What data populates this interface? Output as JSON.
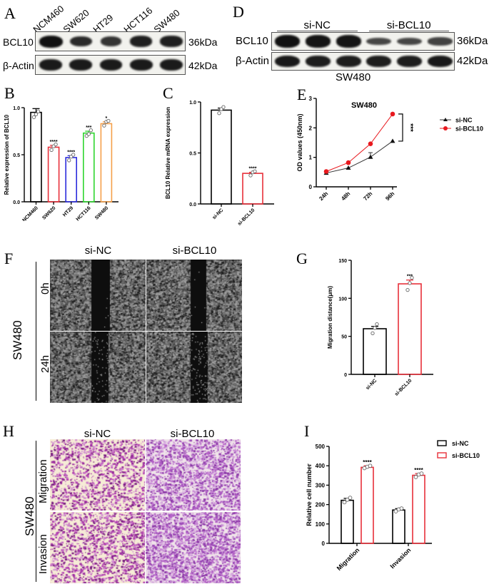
{
  "panels": {
    "A": {
      "label": "A",
      "lanes": [
        "NCM460",
        "SW620",
        "HT29",
        "HCT116",
        "SW480"
      ],
      "rows": [
        {
          "protein": "BCL10",
          "size": "36kDa",
          "intensity": [
            1.0,
            0.75,
            0.65,
            0.85,
            0.85
          ]
        },
        {
          "protein": "β-Actin",
          "size": "42kDa",
          "intensity": [
            0.9,
            0.9,
            0.9,
            0.9,
            0.9
          ]
        }
      ]
    },
    "D": {
      "label": "D",
      "groups": [
        "si-NC",
        "si-BCL10"
      ],
      "cell_line": "SW480",
      "rows": [
        {
          "protein": "BCL10",
          "size": "36kDa",
          "intensity": [
            1.0,
            0.95,
            0.95,
            0.4,
            0.4,
            0.45
          ]
        },
        {
          "protein": "β-Actin",
          "size": "42kDa",
          "intensity": [
            0.9,
            0.85,
            0.85,
            0.85,
            0.85,
            0.9
          ]
        }
      ]
    },
    "F": {
      "label": "F",
      "columns": [
        "si-NC",
        "si-BCL10"
      ],
      "rows": [
        "0h",
        "24h"
      ],
      "cell_line": "SW480"
    },
    "H": {
      "label": "H",
      "columns": [
        "si-NC",
        "si-BCL10"
      ],
      "rows": [
        "Migration",
        "Invasion"
      ],
      "cell_line": "SW480"
    }
  },
  "chart_data": [
    {
      "panel": "B",
      "type": "bar",
      "title": "",
      "xlabel": "",
      "ylabel": "Relative expression of BCL10",
      "categories": [
        "NCM460",
        "SW620",
        "HT29",
        "HCT116",
        "SW480"
      ],
      "values": [
        0.95,
        0.58,
        0.47,
        0.73,
        0.83
      ],
      "errors": [
        0.04,
        0.02,
        0.02,
        0.02,
        0.02
      ],
      "points": [
        [
          0.9,
          0.93,
          0.96
        ],
        [
          0.55,
          0.59,
          0.61
        ],
        [
          0.44,
          0.48,
          0.5
        ],
        [
          0.7,
          0.72,
          0.76
        ],
        [
          0.81,
          0.85,
          0.86
        ]
      ],
      "significance": [
        "",
        "****",
        "****",
        "***",
        "*"
      ],
      "colors": [
        "#000000",
        "#e8303a",
        "#2b2bdc",
        "#2ed62e",
        "#f5a04a"
      ],
      "ylim": [
        0,
        1.0
      ],
      "yticks": [
        "0.0",
        "0.5",
        "1.0"
      ],
      "grid": false
    },
    {
      "panel": "C",
      "type": "bar",
      "title": "",
      "xlabel": "",
      "ylabel": "BCL10 Relative mRNA expression",
      "categories": [
        "si-NC",
        "si-BCL10"
      ],
      "values": [
        0.92,
        0.3
      ],
      "errors": [
        0.02,
        0.01
      ],
      "points": [
        [
          0.89,
          0.93,
          0.95
        ],
        [
          0.28,
          0.31,
          0.32
        ]
      ],
      "significance": [
        "",
        "****"
      ],
      "colors": [
        "#000000",
        "#e8303a"
      ],
      "ylim": [
        0,
        1.0
      ],
      "yticks": [
        "0.0",
        "0.5",
        "1.0"
      ],
      "grid": false
    },
    {
      "panel": "E",
      "type": "line",
      "title": "SW480",
      "xlabel": "",
      "ylabel": "OD values  (450nm)",
      "categories": [
        "24h",
        "48h",
        "72h",
        "96h"
      ],
      "series": [
        {
          "name": "si-NC",
          "values": [
            0.47,
            0.64,
            1.01,
            1.55
          ],
          "errors": [
            0.02,
            0.02,
            0.15,
            0.03
          ],
          "color": "#333333",
          "marker": "triangle"
        },
        {
          "name": "si-BCL10",
          "values": [
            0.52,
            0.82,
            1.46,
            2.47
          ],
          "errors": [
            0.02,
            0.02,
            0.02,
            0.02
          ],
          "color": "#e8181e",
          "marker": "circle"
        }
      ],
      "significance": "***",
      "ylim": [
        0,
        3
      ],
      "yticks": [
        "0",
        "1",
        "2",
        "3"
      ],
      "legend_position": "top-right",
      "grid": false
    },
    {
      "panel": "G",
      "type": "bar",
      "title": "",
      "xlabel": "",
      "ylabel": "Migration distance(μm)",
      "categories": [
        "si-NC",
        "si-BCL10"
      ],
      "values": [
        60,
        119
      ],
      "errors": [
        3,
        5
      ],
      "points": [
        [
          54,
          61,
          66
        ],
        [
          111,
          120,
          127
        ]
      ],
      "significance": [
        "",
        "***"
      ],
      "colors": [
        "#000000",
        "#e8303a"
      ],
      "ylim": [
        0,
        150
      ],
      "yticks": [
        "0",
        "50",
        "100",
        "150"
      ],
      "grid": false
    },
    {
      "panel": "I",
      "type": "bar",
      "title": "",
      "xlabel": "",
      "ylabel": "Relative cell number",
      "categories": [
        "Migration",
        "Invasion"
      ],
      "series": [
        {
          "name": "si-NC",
          "values": [
            222,
            172
          ],
          "errors": [
            10,
            7
          ],
          "color": "#000000",
          "points": [
            [
              212,
              225,
              235
            ],
            [
              165,
              175,
              180
            ]
          ]
        },
        {
          "name": "si-BCL10",
          "values": [
            392,
            351
          ],
          "errors": [
            8,
            9
          ],
          "color": "#e8303a",
          "points": [
            [
              388,
              395,
              400
            ],
            [
              342,
              355,
              360
            ]
          ]
        }
      ],
      "significance": [
        "****",
        "****"
      ],
      "ylim": [
        0,
        500
      ],
      "yticks": [
        "0",
        "100",
        "200",
        "300",
        "400",
        "500"
      ],
      "legend_position": "top-right",
      "grid": false
    }
  ]
}
